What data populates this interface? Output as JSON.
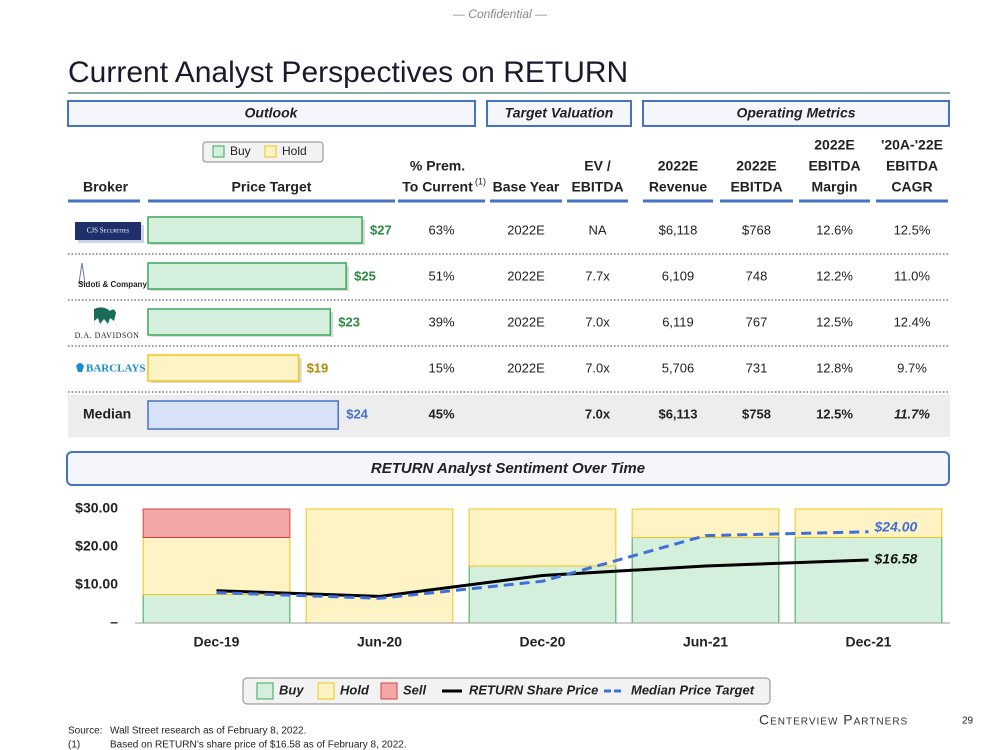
{
  "confidential": "— Confidential —",
  "title": "Current Analyst Perspectives on RETURN",
  "sections": {
    "outlook": "Outlook",
    "target_valuation": "Target Valuation",
    "operating_metrics": "Operating Metrics"
  },
  "rating_legend": [
    {
      "name": "Buy",
      "color": "#d4efdc",
      "border": "#3aa85a"
    },
    {
      "name": "Hold",
      "color": "#fdf3c4",
      "border": "#f0c419"
    }
  ],
  "columns": [
    {
      "lines": [
        "Broker"
      ]
    },
    {
      "lines": [
        "Price Target"
      ]
    },
    {
      "lines": [
        "% Prem.",
        "To Current"
      ],
      "note": "(1)"
    },
    {
      "lines": [
        "Base Year"
      ]
    },
    {
      "lines": [
        "EV /",
        "EBITDA"
      ]
    },
    {
      "lines": [
        "2022E",
        "Revenue"
      ]
    },
    {
      "lines": [
        "2022E",
        "EBITDA"
      ]
    },
    {
      "lines": [
        "2022E",
        "EBITDA",
        "Margin"
      ]
    },
    {
      "lines": [
        "'20A-'22E",
        "EBITDA",
        "CAGR"
      ]
    }
  ],
  "rows": [
    {
      "broker": "CJS Securities",
      "price_target": 27,
      "price_label": "$27",
      "rating": "Buy",
      "prem": "63%",
      "base_year": "2022E",
      "ev_ebitda": "NA",
      "revenue": "$6,118",
      "ebitda": "$768",
      "margin": "12.6%",
      "cagr": "12.5%"
    },
    {
      "broker": "Sidoti & Company",
      "price_target": 25,
      "price_label": "$25",
      "rating": "Buy",
      "prem": "51%",
      "base_year": "2022E",
      "ev_ebitda": "7.7x",
      "revenue": "6,109",
      "ebitda": "748",
      "margin": "12.2%",
      "cagr": "11.0%"
    },
    {
      "broker": "D.A. DAVIDSON",
      "price_target": 23,
      "price_label": "$23",
      "rating": "Buy",
      "prem": "39%",
      "base_year": "2022E",
      "ev_ebitda": "7.0x",
      "revenue": "6,119",
      "ebitda": "767",
      "margin": "12.5%",
      "cagr": "12.4%"
    },
    {
      "broker": "BARCLAYS",
      "price_target": 19,
      "price_label": "$19",
      "rating": "Hold",
      "prem": "15%",
      "base_year": "2022E",
      "ev_ebitda": "7.0x",
      "revenue": "5,706",
      "ebitda": "731",
      "margin": "12.8%",
      "cagr": "9.7%"
    }
  ],
  "median": {
    "label": "Median",
    "price_target": 24,
    "price_label": "$24",
    "prem": "45%",
    "ev_ebitda": "7.0x",
    "revenue": "$6,113",
    "ebitda": "$758",
    "margin": "12.5%",
    "cagr": "11.7%",
    "color": "#d8e2f6",
    "border": "#4472c4"
  },
  "chart_data": {
    "type": "bar",
    "stacked": true,
    "title": "RETURN Analyst Sentiment Over Time",
    "categories": [
      "Dec-19",
      "Jun-20",
      "Dec-20",
      "Jun-21",
      "Dec-21"
    ],
    "series": [
      {
        "name": "Buy",
        "color": "#d4efdc",
        "border": "#3aa85a",
        "values": [
          7.5,
          0,
          15,
          22.5,
          22.5
        ]
      },
      {
        "name": "Hold",
        "color": "#fdf3c4",
        "border": "#f0c419",
        "values": [
          15,
          30,
          15,
          7.5,
          7.5
        ]
      },
      {
        "name": "Sell",
        "color": "#f4a7a7",
        "border": "#d94040",
        "values": [
          7.5,
          0,
          0,
          0,
          0
        ]
      }
    ],
    "lines": [
      {
        "name": "RETURN Share Price",
        "color": "#000000",
        "dash": false,
        "values": [
          8.5,
          7,
          12.5,
          15,
          16.58
        ],
        "end_label": "$16.58"
      },
      {
        "name": "Median Price Target",
        "color": "#3f6fd8",
        "dash": true,
        "values": [
          8,
          6.5,
          11,
          23,
          24
        ],
        "end_label": "$24.00"
      }
    ],
    "ylim": [
      0,
      30
    ],
    "yticks": [
      {
        "value": 0,
        "label": "–"
      },
      {
        "value": 10,
        "label": "$10.00"
      },
      {
        "value": 20,
        "label": "$20.00"
      },
      {
        "value": 30,
        "label": "$30.00"
      }
    ]
  },
  "footnotes": [
    {
      "marker": "Source:",
      "text": "Wall Street research as of February 8, 2022."
    },
    {
      "marker": "(1)",
      "text": "Based on RETURN’s share price of $16.58 as of February 8, 2022."
    }
  ],
  "firm": "Centerview Partners",
  "page": "29"
}
